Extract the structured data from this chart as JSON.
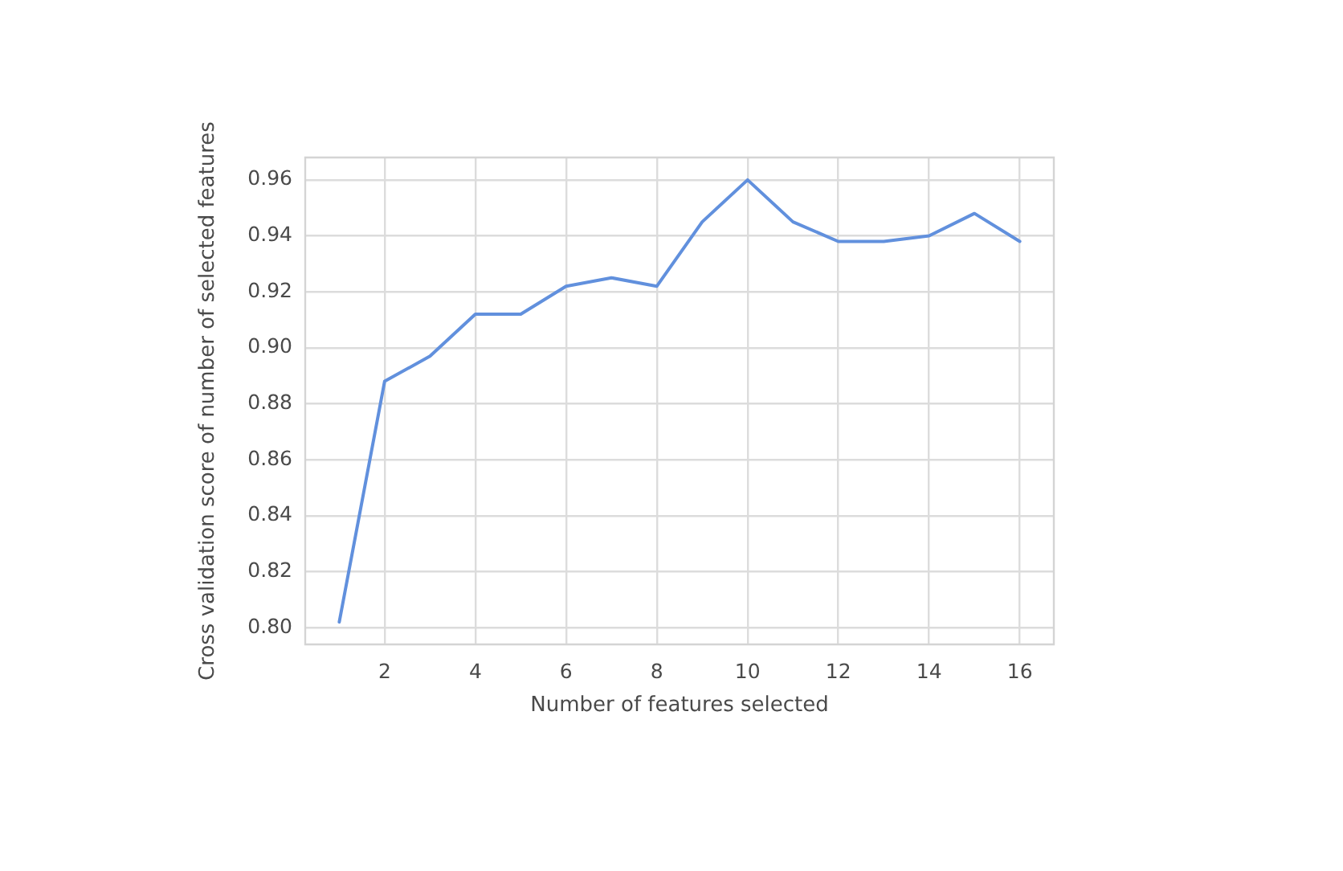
{
  "chart_data": {
    "type": "line",
    "xlabel": "Number of features selected",
    "ylabel": "Cross validation score of number of selected features",
    "x": [
      1,
      2,
      3,
      4,
      5,
      6,
      7,
      8,
      9,
      10,
      11,
      12,
      13,
      14,
      15,
      16
    ],
    "values": [
      0.802,
      0.888,
      0.897,
      0.912,
      0.912,
      0.922,
      0.925,
      0.922,
      0.945,
      0.96,
      0.945,
      0.938,
      0.938,
      0.94,
      0.948,
      0.938
    ],
    "color": "#6190dd",
    "xlim": [
      0.25,
      16.75
    ],
    "xticks": [
      2,
      4,
      6,
      8,
      10,
      12,
      14,
      16
    ],
    "ylim": [
      0.794,
      0.968
    ],
    "yticks": [
      {
        "value": 0.8,
        "label": "0.80"
      },
      {
        "value": 0.82,
        "label": "0.82"
      },
      {
        "value": 0.84,
        "label": "0.84"
      },
      {
        "value": 0.86,
        "label": "0.86"
      },
      {
        "value": 0.88,
        "label": "0.88"
      },
      {
        "value": 0.9,
        "label": "0.90"
      },
      {
        "value": 0.92,
        "label": "0.92"
      },
      {
        "value": 0.94,
        "label": "0.94"
      },
      {
        "value": 0.96,
        "label": "0.96"
      }
    ],
    "grid": true,
    "marker": "none",
    "line_style": "solid"
  }
}
